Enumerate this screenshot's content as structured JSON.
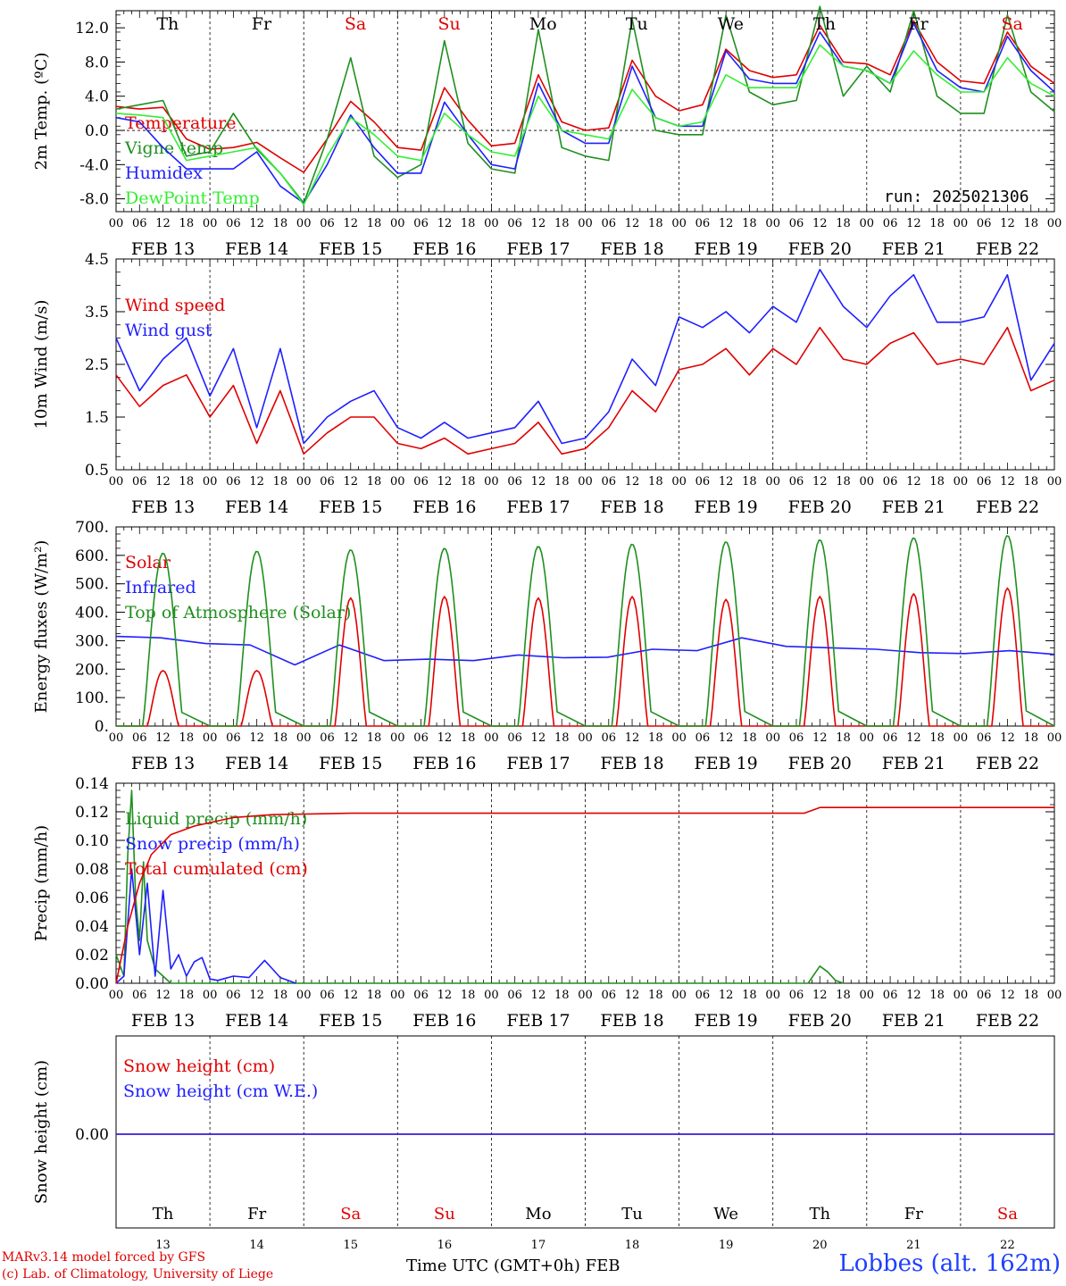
{
  "days": {
    "ticks_time": [
      "00",
      "06",
      "12",
      "18"
    ],
    "dates": [
      "FEB 13",
      "FEB 14",
      "FEB 15",
      "FEB 16",
      "FEB 17",
      "FEB 18",
      "FEB 19",
      "FEB 20",
      "FEB 21",
      "FEB 22"
    ],
    "weekdays": [
      "Th",
      "Fr",
      "Sa",
      "Su",
      "Mo",
      "Tu",
      "We",
      "Th",
      "Fr",
      "Sa"
    ],
    "weekday_colors": [
      "#000000",
      "#000000",
      "#e00000",
      "#e00000",
      "#000000",
      "#000000",
      "#000000",
      "#000000",
      "#000000",
      "#e00000"
    ],
    "day_numbers": [
      "13",
      "14",
      "15",
      "16",
      "17",
      "18",
      "19",
      "20",
      "21",
      "22"
    ]
  },
  "run_label": "run: 2025021306",
  "footer": {
    "credit_line1": "MARv3.14 model forced by GFS",
    "credit_line2": "(c) Lab. of Climatology, University of Liege",
    "x_axis_label": "Time UTC (GMT+0h) FEB",
    "station": "Lobbes (alt. 162m)"
  },
  "chart_data": [
    {
      "id": "temp",
      "type": "line",
      "ylabel": "2m Temp. (ºC)",
      "ylim": [
        -9.5,
        14.0
      ],
      "yticks": [
        -8,
        -4,
        0,
        4,
        8,
        12
      ],
      "ytick_labels": [
        "-8.0",
        "-4.0",
        "0.0",
        "4.0",
        "8.0",
        "12.0"
      ],
      "zero_line": true,
      "x": [
        0,
        6,
        12,
        18,
        24,
        30,
        36,
        42,
        48,
        54,
        60,
        66,
        72,
        78,
        84,
        90,
        96,
        102,
        108,
        114,
        120,
        126,
        132,
        138,
        144,
        150,
        156,
        162,
        168,
        174,
        180,
        186,
        192,
        198,
        204,
        210,
        216,
        222,
        228,
        234,
        240
      ],
      "series": [
        {
          "name": "Temperature",
          "color": "#e00000",
          "values": [
            2.8,
            2.5,
            2.7,
            -1.0,
            -2.2,
            -2.0,
            -1.4,
            -3.2,
            -4.9,
            -1.0,
            3.4,
            1.0,
            -2.0,
            -2.3,
            5.0,
            1.2,
            -1.8,
            -1.5,
            6.5,
            1.0,
            0.0,
            0.3,
            8.2,
            4.0,
            2.3,
            3.0,
            9.5,
            7.0,
            6.2,
            6.5,
            12.3,
            8.0,
            7.8,
            6.5,
            12.8,
            8.0,
            5.8,
            5.5,
            11.5,
            7.5,
            5.5
          ]
        },
        {
          "name": "Vigne temp",
          "color": "#1f8f1f",
          "values": [
            2.5,
            3.0,
            3.5,
            -3.0,
            -2.5,
            2.0,
            -2.2,
            -5.0,
            -8.5,
            -1.0,
            8.5,
            -3.0,
            -5.5,
            -4.0,
            10.5,
            -1.5,
            -4.5,
            -5.0,
            11.8,
            -2.0,
            -3.0,
            -3.5,
            13.0,
            0.0,
            -0.5,
            -0.5,
            13.5,
            4.5,
            3.0,
            3.5,
            14.5,
            4.0,
            7.5,
            4.5,
            14.0,
            4.0,
            2.0,
            2.0,
            13.5,
            4.5,
            2.2
          ]
        },
        {
          "name": "Humidex",
          "color": "#1f1fff",
          "values": [
            1.5,
            1.0,
            -2.0,
            -4.5,
            -4.5,
            -4.5,
            -2.5,
            -6.5,
            -8.5,
            -4.0,
            1.8,
            -2.0,
            -5.0,
            -5.0,
            3.3,
            -0.5,
            -4.0,
            -4.5,
            5.5,
            0.0,
            -1.5,
            -1.5,
            7.5,
            1.5,
            0.5,
            0.5,
            9.3,
            6.0,
            5.5,
            5.5,
            11.5,
            7.5,
            7.0,
            5.5,
            12.5,
            7.0,
            5.0,
            4.5,
            11.0,
            7.0,
            4.5
          ]
        },
        {
          "name": "DewPoint Temp",
          "color": "#33ee33",
          "values": [
            2.0,
            1.8,
            1.5,
            -3.5,
            -3.0,
            -2.5,
            -2.0,
            -5.0,
            -8.7,
            -3.0,
            1.5,
            -0.5,
            -3.0,
            -3.5,
            2.0,
            -0.5,
            -2.5,
            -3.0,
            4.0,
            0.0,
            -0.5,
            -1.0,
            4.8,
            1.5,
            0.5,
            1.0,
            6.5,
            5.0,
            5.0,
            5.0,
            10.0,
            7.5,
            7.0,
            5.5,
            9.3,
            6.5,
            4.5,
            4.5,
            8.5,
            5.5,
            4.0
          ]
        }
      ]
    },
    {
      "id": "wind",
      "type": "line",
      "ylabel": "10m Wind (m/s)",
      "ylim": [
        0.5,
        4.5
      ],
      "yticks": [
        0.5,
        1.5,
        2.5,
        3.5,
        4.5
      ],
      "ytick_labels": [
        "0.5",
        "1.5",
        "2.5",
        "3.5",
        "4.5"
      ],
      "x": [
        0,
        6,
        12,
        18,
        24,
        30,
        36,
        42,
        48,
        54,
        60,
        66,
        72,
        78,
        84,
        90,
        96,
        102,
        108,
        114,
        120,
        126,
        132,
        138,
        144,
        150,
        156,
        162,
        168,
        174,
        180,
        186,
        192,
        198,
        204,
        210,
        216,
        222,
        228,
        234,
        240
      ],
      "series": [
        {
          "name": "Wind speed",
          "color": "#e00000",
          "values": [
            2.3,
            1.7,
            2.1,
            2.3,
            1.5,
            2.1,
            1.0,
            2.0,
            0.8,
            1.2,
            1.5,
            1.5,
            1.0,
            0.9,
            1.1,
            0.8,
            0.9,
            1.0,
            1.4,
            0.8,
            0.9,
            1.3,
            2.0,
            1.6,
            2.4,
            2.5,
            2.8,
            2.3,
            2.8,
            2.5,
            3.2,
            2.6,
            2.5,
            2.9,
            3.1,
            2.5,
            2.6,
            2.5,
            3.2,
            2.0,
            2.2
          ]
        },
        {
          "name": "Wind gust",
          "color": "#1f1fff",
          "values": [
            3.0,
            2.0,
            2.6,
            3.0,
            1.9,
            2.8,
            1.3,
            2.8,
            1.0,
            1.5,
            1.8,
            2.0,
            1.3,
            1.1,
            1.4,
            1.1,
            1.2,
            1.3,
            1.8,
            1.0,
            1.1,
            1.6,
            2.6,
            2.1,
            3.4,
            3.2,
            3.5,
            3.1,
            3.6,
            3.3,
            4.3,
            3.6,
            3.2,
            3.8,
            4.2,
            3.3,
            3.3,
            3.4,
            4.2,
            2.2,
            2.9
          ]
        }
      ]
    },
    {
      "id": "energy",
      "type": "line",
      "ylabel": "Energy fluxes (W/m²)",
      "ylim": [
        0,
        700
      ],
      "yticks": [
        0,
        100,
        200,
        300,
        400,
        500,
        600,
        700
      ],
      "ytick_labels": [
        "0.",
        "100.",
        "200.",
        "300.",
        "400.",
        "500.",
        "600.",
        "700."
      ],
      "series": [
        {
          "name": "Solar",
          "color": "#e00000",
          "daily_peak": [
            195,
            195,
            450,
            455,
            450,
            455,
            445,
            455,
            465,
            485
          ]
        },
        {
          "name": "Infrared",
          "color": "#1f1fff",
          "values": [
            315,
            310,
            290,
            285,
            215,
            285,
            230,
            235,
            230,
            250,
            240,
            242,
            270,
            265,
            310,
            280,
            275,
            270,
            258,
            255,
            265,
            252
          ]
        },
        {
          "name": "Top of Atmosphere (Solar)",
          "color": "#1f8f1f",
          "daily_peak": [
            608,
            615,
            620,
            625,
            632,
            640,
            648,
            655,
            662,
            670
          ]
        }
      ]
    },
    {
      "id": "precip",
      "type": "line",
      "ylabel": "Precip (mm/h)",
      "ylim": [
        0,
        0.14
      ],
      "yticks": [
        0,
        0.02,
        0.04,
        0.06,
        0.08,
        0.1,
        0.12,
        0.14
      ],
      "ytick_labels": [
        "0.00",
        "0.02",
        "0.04",
        "0.06",
        "0.08",
        "0.10",
        "0.12",
        "0.14"
      ],
      "series": [
        {
          "name": "Liquid precip (mm/h)",
          "color": "#1f8f1f",
          "points": [
            [
              0,
              0.02
            ],
            [
              2,
              0.005
            ],
            [
              3,
              0.09
            ],
            [
              4,
              0.135
            ],
            [
              5,
              0.06
            ],
            [
              6,
              0.03
            ],
            [
              7,
              0.085
            ],
            [
              8,
              0.03
            ],
            [
              10,
              0.01
            ],
            [
              12,
              0.005
            ],
            [
              14,
              0.0
            ],
            [
              177,
              0.0
            ],
            [
              180,
              0.012
            ],
            [
              182,
              0.008
            ],
            [
              184,
              0.002
            ],
            [
              186,
              0.0
            ]
          ]
        },
        {
          "name": "Snow precip (mm/h)",
          "color": "#1f1fff",
          "points": [
            [
              0,
              0.0
            ],
            [
              2,
              0.005
            ],
            [
              4,
              0.08
            ],
            [
              6,
              0.02
            ],
            [
              8,
              0.07
            ],
            [
              10,
              0.005
            ],
            [
              12,
              0.065
            ],
            [
              14,
              0.01
            ],
            [
              16,
              0.02
            ],
            [
              18,
              0.005
            ],
            [
              20,
              0.015
            ],
            [
              22,
              0.018
            ],
            [
              24,
              0.003
            ],
            [
              26,
              0.002
            ],
            [
              30,
              0.005
            ],
            [
              34,
              0.004
            ],
            [
              36,
              0.01
            ],
            [
              38,
              0.016
            ],
            [
              40,
              0.01
            ],
            [
              42,
              0.004
            ],
            [
              46,
              0.0
            ]
          ]
        },
        {
          "name": "Total cumulated (cm)",
          "color": "#e00000",
          "points": [
            [
              0,
              0.0
            ],
            [
              3,
              0.04
            ],
            [
              6,
              0.07
            ],
            [
              9,
              0.09
            ],
            [
              14,
              0.104
            ],
            [
              20,
              0.11
            ],
            [
              30,
              0.116
            ],
            [
              40,
              0.118
            ],
            [
              60,
              0.119
            ],
            [
              170,
              0.119
            ],
            [
              176,
              0.119
            ],
            [
              180,
              0.123
            ],
            [
              240,
              0.123
            ]
          ]
        }
      ]
    },
    {
      "id": "snow",
      "type": "line",
      "ylabel": "Snow height (cm)",
      "ytick_labels": [
        "0.00"
      ],
      "series": [
        {
          "name": "Snow height (cm)",
          "color": "#e00000",
          "values": [
            0.0,
            0.0
          ]
        },
        {
          "name": "Snow height (cm W.E.)",
          "color": "#1f1fff",
          "values": [
            0.0,
            0.0
          ]
        }
      ]
    }
  ]
}
